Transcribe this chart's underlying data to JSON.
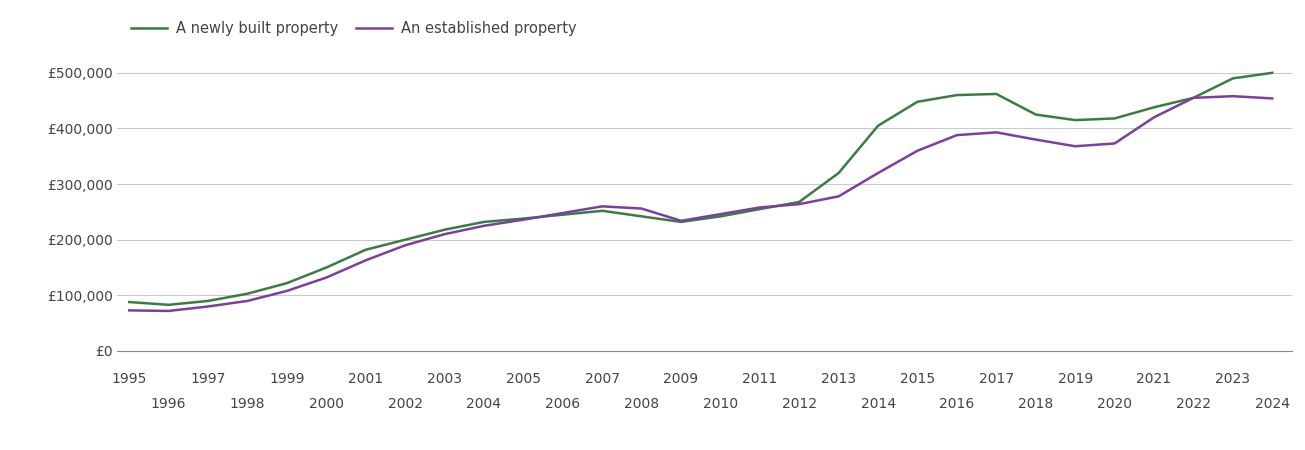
{
  "legend_labels": [
    "A newly built property",
    "An established property"
  ],
  "new_color": "#3a7d44",
  "est_color": "#7b3f9e",
  "background_color": "#ffffff",
  "grid_color": "#c8c8c8",
  "years": [
    1995,
    1996,
    1997,
    1998,
    1999,
    2000,
    2001,
    2002,
    2003,
    2004,
    2005,
    2006,
    2007,
    2008,
    2009,
    2010,
    2011,
    2012,
    2013,
    2014,
    2015,
    2016,
    2017,
    2018,
    2019,
    2020,
    2021,
    2022,
    2023,
    2024
  ],
  "new_prices": [
    88000,
    83000,
    90000,
    103000,
    122000,
    150000,
    182000,
    200000,
    218000,
    232000,
    238000,
    245000,
    252000,
    242000,
    232000,
    242000,
    255000,
    268000,
    320000,
    405000,
    448000,
    460000,
    462000,
    425000,
    415000,
    418000,
    438000,
    455000,
    490000,
    500000
  ],
  "est_prices": [
    73000,
    72000,
    80000,
    90000,
    108000,
    132000,
    163000,
    190000,
    210000,
    225000,
    236000,
    248000,
    260000,
    256000,
    234000,
    246000,
    258000,
    264000,
    278000,
    320000,
    360000,
    388000,
    393000,
    380000,
    368000,
    373000,
    420000,
    455000,
    458000,
    454000
  ],
  "ylim": [
    0,
    550000
  ],
  "yticks": [
    0,
    100000,
    200000,
    300000,
    400000,
    500000
  ],
  "ytick_labels": [
    "£0",
    "£100,000",
    "£200,000",
    "£300,000",
    "£400,000",
    "£500,000"
  ],
  "line_width": 1.8,
  "text_color": "#404040",
  "axis_text_color": "#444444",
  "tick_fontsize": 10,
  "legend_fontsize": 10.5
}
